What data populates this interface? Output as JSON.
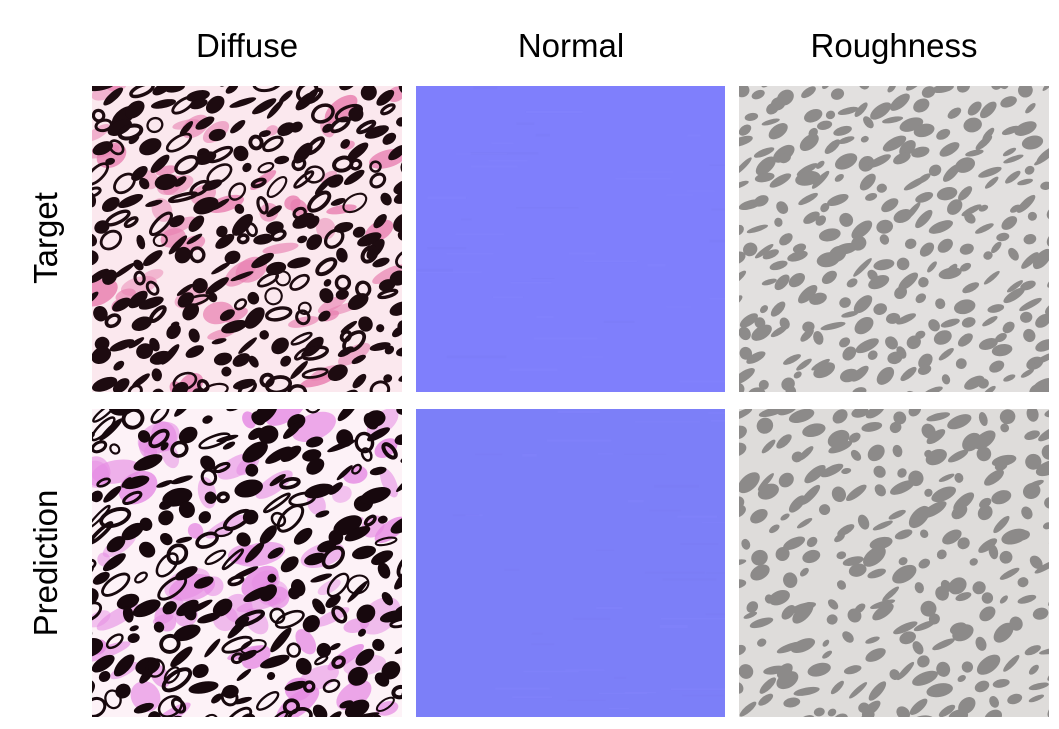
{
  "columns": {
    "diffuse": "Diffuse",
    "normal": "Normal",
    "roughness": "Roughness"
  },
  "rows": {
    "target": "Target",
    "prediction": "Prediction"
  },
  "tiles": [
    {
      "row": "target",
      "map": "diffuse",
      "description": "pink leopard print texture",
      "colors": {
        "base": "#fbe8ee",
        "accent": "#e87fb0",
        "spot": "#1d0b10"
      }
    },
    {
      "row": "target",
      "map": "normal",
      "description": "flat normal map",
      "colors": {
        "base": "#7f7ffc"
      }
    },
    {
      "row": "target",
      "map": "roughness",
      "description": "grey leopard roughness map",
      "colors": {
        "base": "#e2e0df",
        "spot": "#8d8b8a"
      }
    },
    {
      "row": "prediction",
      "map": "diffuse",
      "description": "pink leopard print texture",
      "colors": {
        "base": "#fdf2f7",
        "accent": "#e58ae3",
        "spot": "#17080d"
      }
    },
    {
      "row": "prediction",
      "map": "normal",
      "description": "flat normal map",
      "colors": {
        "base": "#7c7ff8"
      }
    },
    {
      "row": "prediction",
      "map": "roughness",
      "description": "grey leopard roughness map",
      "colors": {
        "base": "#dedcda",
        "spot": "#8c8a89"
      }
    }
  ]
}
